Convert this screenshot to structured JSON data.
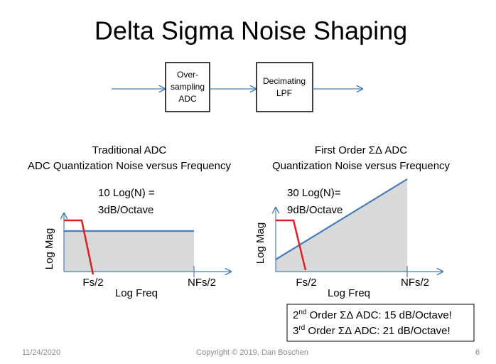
{
  "title": "Delta Sigma Noise Shaping",
  "block_diagram": {
    "blocks": [
      {
        "lines": [
          "Over-",
          "sampling",
          "ADC"
        ]
      },
      {
        "lines": [
          "Decimating",
          "LPF"
        ]
      }
    ]
  },
  "left_graph": {
    "caption": [
      "Traditional ADC",
      "ADC Quantization Noise versus Frequency"
    ],
    "annotation": [
      "10 Log(N) =",
      "3dB/Octave"
    ],
    "y_label": "Log Mag",
    "x_label": "Log Freq",
    "x_marks": [
      "Fs/2",
      "NFs/2"
    ]
  },
  "right_graph": {
    "caption": [
      "First Order ΣΔ ADC",
      "Quantization Noise versus Frequency"
    ],
    "annotation": [
      "30 Log(N)=",
      "9dB/Octave"
    ],
    "y_label": "Log Mag",
    "x_label": "Log Freq",
    "x_marks": [
      "Fs/2",
      "NFs/2"
    ]
  },
  "note_box": {
    "lines": [
      {
        "number": "2",
        "suffix": "nd",
        "text": " Order ΣΔ ADC: 15 dB/Octave!"
      },
      {
        "number": "3",
        "suffix": "rd",
        "text": " Order ΣΔ ADC: 21 dB/Octave!"
      }
    ]
  },
  "footer": {
    "date": "11/24/2020",
    "copyright": "Copyright © 2019, Dan Boschen",
    "page": "6"
  }
}
